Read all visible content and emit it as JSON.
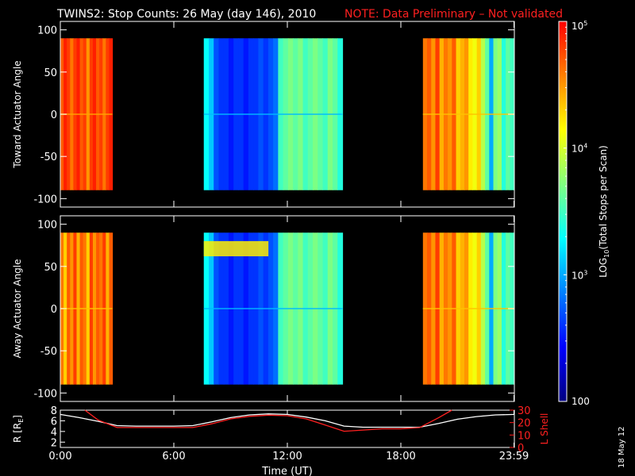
{
  "title": {
    "main": "TWINS2: Stop Counts: 26 May (day 146), 2010",
    "note": "NOTE: Data Preliminary – Not validated",
    "note_color": "#ff2020"
  },
  "chart_data": [
    {
      "type": "heatmap",
      "panel": "toward",
      "ylabel": "Toward Actuator Angle",
      "ylim": [
        -110,
        110
      ],
      "yticks": [
        "100",
        "50",
        "0",
        "-50",
        "-100"
      ],
      "xlim_hours": [
        0,
        24
      ],
      "data_y_range": [
        -90,
        90
      ],
      "segments": [
        {
          "start": "00:00",
          "end": "02:45",
          "log10_counts": [
            4.7,
            4.9,
            4.8,
            4.6,
            4.8,
            4.9,
            4.7,
            4.8,
            4.5,
            4.8,
            4.9,
            4.7,
            4.8,
            4.6,
            4.8,
            4.9
          ]
        },
        {
          "start": "07:35",
          "end": "14:55",
          "log10_counts": [
            3.3,
            3.1,
            2.7,
            2.6,
            2.6,
            2.5,
            2.6,
            2.6,
            2.5,
            2.6,
            2.6,
            2.7,
            2.6,
            2.7,
            2.8,
            3.5,
            3.6,
            3.7,
            3.6,
            3.7,
            3.5,
            3.6,
            3.7,
            3.6,
            3.5,
            3.7,
            3.6,
            3.4
          ]
        },
        {
          "start": "19:10",
          "end": "23:59",
          "log10_counts": [
            4.6,
            4.7,
            4.5,
            4.8,
            4.4,
            4.6,
            4.5,
            4.7,
            4.3,
            4.4,
            4.5,
            4.2,
            4.1,
            4.3,
            3.9,
            3.6,
            3.0,
            3.7,
            3.8,
            3.4,
            3.6,
            3.5
          ]
        }
      ]
    },
    {
      "type": "heatmap",
      "panel": "away",
      "ylabel": "Away Actuator Angle",
      "ylim": [
        -110,
        110
      ],
      "yticks": [
        "100",
        "50",
        "0",
        "-50",
        "-100"
      ],
      "xlim_hours": [
        0,
        24
      ],
      "data_y_range": [
        -90,
        90
      ],
      "segments": [
        {
          "start": "00:00",
          "end": "02:45",
          "log10_counts": [
            4.6,
            4.3,
            4.7,
            4.5,
            4.8,
            4.4,
            4.7,
            4.6,
            4.3,
            4.8,
            4.5,
            4.7,
            4.6,
            4.8,
            4.4,
            4.7
          ]
        },
        {
          "start": "07:35",
          "end": "14:55",
          "log10_counts": [
            3.3,
            3.1,
            2.7,
            2.6,
            2.6,
            2.5,
            2.6,
            2.6,
            2.5,
            2.6,
            2.6,
            2.7,
            2.6,
            2.7,
            2.8,
            3.5,
            3.6,
            3.7,
            3.6,
            3.7,
            3.5,
            3.6,
            3.7,
            3.6,
            3.5,
            3.7,
            3.6,
            3.4
          ]
        },
        {
          "start": "19:10",
          "end": "23:59",
          "log10_counts": [
            4.6,
            4.7,
            4.5,
            4.8,
            4.4,
            4.6,
            4.5,
            4.7,
            4.3,
            4.4,
            4.5,
            4.2,
            4.1,
            4.3,
            3.9,
            3.6,
            3.0,
            3.7,
            3.8,
            3.4,
            3.6,
            3.5
          ]
        }
      ],
      "band_feature": {
        "y_range": [
          62,
          80
        ],
        "x_range": [
          "07:35",
          "11:00"
        ],
        "log10_counts": 4.2
      }
    },
    {
      "type": "line",
      "panel": "orbit",
      "ylabel_left": "R [R",
      "ylabel_left_sub": "E",
      "ylabel_left_close": "]",
      "ylabel_right": "L Shell",
      "ylim_left": [
        1,
        8
      ],
      "yticks_left": [
        "8",
        "6",
        "4",
        "2"
      ],
      "ylim_right": [
        0,
        30
      ],
      "yticks_right": [
        "30",
        "20",
        "10",
        "0"
      ],
      "xlabel": "Time (UT)",
      "xticks": [
        "0:00",
        "6:00",
        "12:00",
        "18:00",
        "23:59"
      ],
      "xtick_hours": [
        0,
        6,
        12,
        18,
        23.98
      ],
      "series": [
        {
          "name": "R",
          "axis": "left",
          "color": "#ffffff",
          "x": [
            0,
            1,
            2,
            3,
            4,
            5,
            6,
            7,
            8,
            9,
            10,
            11,
            12,
            13,
            14,
            15,
            16,
            17,
            18,
            19,
            20,
            21,
            22,
            23,
            24
          ],
          "y": [
            7.2,
            6.6,
            5.9,
            5.1,
            5.0,
            5.0,
            5.0,
            5.1,
            5.8,
            6.6,
            7.1,
            7.3,
            7.2,
            6.7,
            6.0,
            5.0,
            4.8,
            4.8,
            4.8,
            4.8,
            5.5,
            6.3,
            6.8,
            7.1,
            7.2
          ]
        },
        {
          "name": "L Shell",
          "axis": "right",
          "color": "#ff2020",
          "x": [
            1.3,
            2,
            3,
            4,
            5,
            6,
            7,
            8,
            9,
            10,
            11,
            12,
            13,
            14,
            15,
            16,
            17,
            18,
            19,
            20,
            20.7
          ],
          "y": [
            30,
            22,
            16,
            16,
            16,
            16,
            16,
            19,
            23,
            25,
            26,
            25.5,
            23,
            18,
            13,
            14,
            15,
            15,
            16,
            24,
            30
          ]
        }
      ]
    },
    {
      "type": "colorbar",
      "label": "LOG",
      "label_sub": "10",
      "label_rest": "(Total Stops per Scan)",
      "scale": "log",
      "range_log10": [
        2,
        5
      ],
      "tick_labels": [
        {
          "base": "10",
          "exp": "5",
          "log10": 5
        },
        {
          "base": "10",
          "exp": "4",
          "log10": 4
        },
        {
          "base": "10",
          "exp": "3",
          "log10": 3
        },
        {
          "base": "100",
          "exp": "",
          "log10": 2
        }
      ],
      "colormap": [
        "#000080",
        "#0000ff",
        "#0080ff",
        "#00ffff",
        "#80ff80",
        "#ffff00",
        "#ff8000",
        "#ff0000"
      ]
    }
  ],
  "footer": {
    "date_stamp": "18 May 12"
  }
}
